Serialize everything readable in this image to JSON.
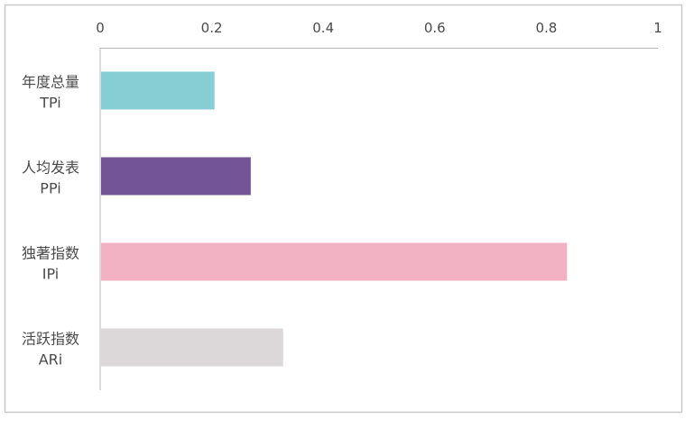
{
  "chart_data": {
    "type": "bar",
    "orientation": "horizontal",
    "categories": [
      {
        "label": "年度总量",
        "code": "TPi"
      },
      {
        "label": "人均发表",
        "code": "PPi"
      },
      {
        "label": "独著指数",
        "code": "IPi"
      },
      {
        "label": "活跃指数",
        "code": "ARi"
      }
    ],
    "values": [
      0.205,
      0.27,
      0.837,
      0.328
    ],
    "colors": [
      "#86ced3",
      "#735597",
      "#f3b2c3",
      "#dcd7d9"
    ],
    "x_ticks": [
      "0",
      "0.2",
      "0.4",
      "0.6",
      "0.8",
      "1"
    ],
    "xlim": [
      0,
      1
    ],
    "x_axis_position": "top",
    "grid": false,
    "legend": "none"
  }
}
